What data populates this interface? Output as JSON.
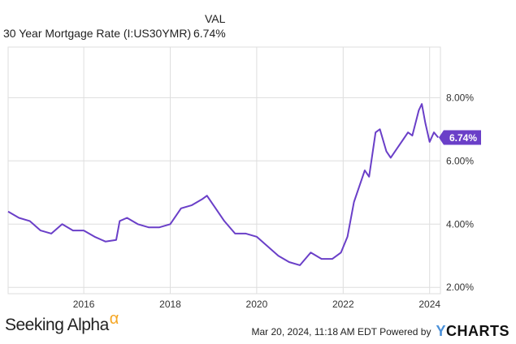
{
  "legend": {
    "column_header": "VAL",
    "series_name": "30 Year Mortgage Rate (I:US30YMR)",
    "series_value": "6.74%"
  },
  "footer": {
    "brand_left": "Seeking Alpha",
    "brand_left_mark": "α",
    "timestamp": "Mar 20, 2024, 11:18 AM EDT  Powered by",
    "brand_right_prefix": "Y",
    "brand_right": "CHARTS"
  },
  "colors": {
    "line": "#6a3fc8",
    "badge": "#6a3fc8",
    "grid": "#dedede",
    "brand_accent": "#f5a623"
  },
  "chart_data": {
    "type": "line",
    "title": "",
    "xlabel": "",
    "ylabel": "",
    "xlim": [
      2014.25,
      2024.25
    ],
    "ylim": [
      1.8,
      9.6
    ],
    "x_ticks": [
      2016,
      2018,
      2020,
      2022,
      2024
    ],
    "x_tick_labels": [
      "2016",
      "2018",
      "2020",
      "2022",
      "2024"
    ],
    "y_ticks": [
      2,
      4,
      6,
      8
    ],
    "y_tick_labels": [
      "2.00%",
      "4.00%",
      "6.00%",
      "8.00%"
    ],
    "grid": true,
    "last_value_label": "6.74%",
    "series": [
      {
        "name": "30 Year Mortgage Rate (I:US30YMR)",
        "x": [
          2014.25,
          2014.5,
          2014.75,
          2015.0,
          2015.25,
          2015.5,
          2015.75,
          2016.0,
          2016.25,
          2016.5,
          2016.75,
          2016.83,
          2017.0,
          2017.25,
          2017.5,
          2017.75,
          2018.0,
          2018.25,
          2018.5,
          2018.75,
          2018.85,
          2019.0,
          2019.25,
          2019.5,
          2019.75,
          2020.0,
          2020.25,
          2020.5,
          2020.75,
          2021.0,
          2021.25,
          2021.5,
          2021.75,
          2021.95,
          2022.1,
          2022.25,
          2022.4,
          2022.5,
          2022.6,
          2022.75,
          2022.85,
          2023.0,
          2023.1,
          2023.25,
          2023.4,
          2023.5,
          2023.6,
          2023.75,
          2023.82,
          2023.9,
          2024.0,
          2024.1,
          2024.2
        ],
        "y": [
          4.4,
          4.2,
          4.1,
          3.8,
          3.7,
          4.0,
          3.8,
          3.8,
          3.6,
          3.45,
          3.5,
          4.1,
          4.2,
          4.0,
          3.9,
          3.9,
          4.0,
          4.5,
          4.6,
          4.8,
          4.9,
          4.6,
          4.1,
          3.7,
          3.7,
          3.6,
          3.3,
          3.0,
          2.8,
          2.7,
          3.1,
          2.9,
          2.9,
          3.1,
          3.6,
          4.7,
          5.3,
          5.7,
          5.5,
          6.9,
          7.0,
          6.3,
          6.1,
          6.4,
          6.7,
          6.9,
          6.8,
          7.6,
          7.8,
          7.2,
          6.6,
          6.9,
          6.74
        ]
      }
    ]
  }
}
